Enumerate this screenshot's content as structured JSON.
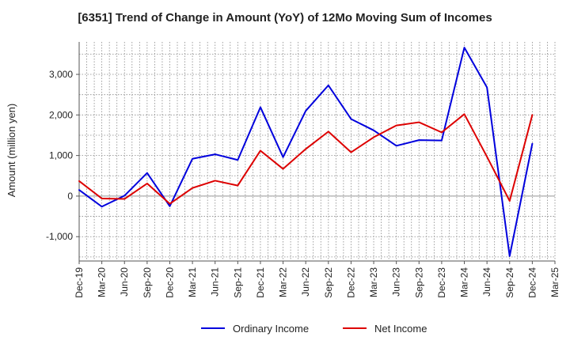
{
  "chart_data": {
    "type": "line",
    "title": "[6351]  Trend of Change in Amount (YoY) of 12Mo Moving Sum of Incomes",
    "xlabel": "",
    "ylabel": "Amount (million yen)",
    "ylim": [
      -1600,
      3800
    ],
    "yticks": [
      -1000,
      0,
      1000,
      2000,
      3000
    ],
    "ytick_labels": [
      "-1,000",
      "0",
      "1,000",
      "2,000",
      "3,000"
    ],
    "categories": [
      "Dec-19",
      "Mar-20",
      "Jun-20",
      "Sep-20",
      "Dec-20",
      "Mar-21",
      "Jun-21",
      "Sep-21",
      "Dec-21",
      "Mar-22",
      "Jun-22",
      "Sep-22",
      "Dec-22",
      "Mar-23",
      "Jun-23",
      "Sep-23",
      "Dec-23",
      "Mar-24",
      "Jun-24",
      "Sep-24",
      "Dec-24",
      "Mar-25"
    ],
    "grid": true,
    "legend_position": "bottom",
    "series": [
      {
        "name": "Ordinary Income",
        "color": "#0000dd",
        "values": [
          150,
          -260,
          10,
          570,
          -250,
          920,
          1030,
          890,
          2190,
          960,
          2100,
          2730,
          1900,
          1620,
          1240,
          1380,
          1370,
          3660,
          2680,
          -1480,
          1290,
          null
        ]
      },
      {
        "name": "Net Income",
        "color": "#dd0000",
        "values": [
          370,
          -60,
          -70,
          310,
          -190,
          200,
          380,
          260,
          1120,
          670,
          1160,
          1590,
          1080,
          1450,
          1740,
          1820,
          1570,
          2020,
          970,
          -120,
          2000,
          null
        ]
      }
    ]
  }
}
